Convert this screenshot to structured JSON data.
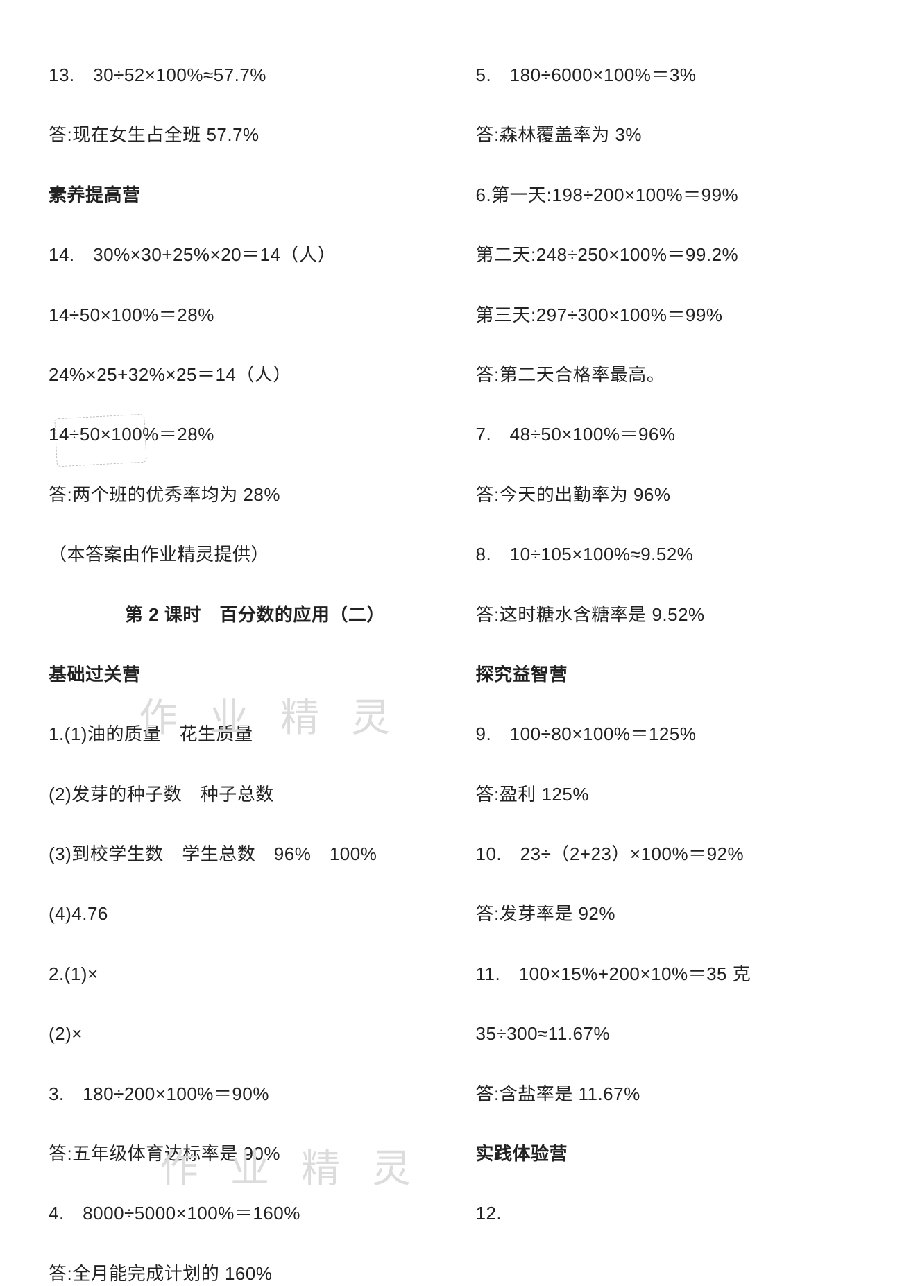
{
  "left": {
    "l1": "13.　30÷52×100%≈57.7%",
    "l2": "答:现在女生占全班 57.7%",
    "h1": "素养提高营",
    "l3": "14.　30%×30+25%×20＝14（人）",
    "l4": "14÷50×100%＝28%",
    "l5": "24%×25+32%×25＝14（人）",
    "l6": "14÷50×100%＝28%",
    "l7": "答:两个班的优秀率均为 28%",
    "l8": "（本答案由作业精灵提供）",
    "h2": "第 2 课时　百分数的应用（二）",
    "h3": "基础过关营",
    "l9": "1.(1)油的质量　花生质量",
    "l10": "(2)发芽的种子数　种子总数",
    "l11": "(3)到校学生数　学生总数　96%　100%",
    "l12": "(4)4.76",
    "l13": "2.(1)×",
    "l14": "(2)×",
    "l15": "3.　180÷200×100%＝90%",
    "l16": "答:五年级体育达标率是 90%",
    "l17": "4.　8000÷5000×100%＝160%",
    "l18": "答:全月能完成计划的 160%"
  },
  "right": {
    "r1": "5.　180÷6000×100%＝3%",
    "r2": "答:森林覆盖率为 3%",
    "r3": "6.第一天:198÷200×100%＝99%",
    "r4": "第二天:248÷250×100%＝99.2%",
    "r5": "第三天:297÷300×100%＝99%",
    "r6": "答:第二天合格率最高。",
    "r7": "7.　48÷50×100%＝96%",
    "r8": "答:今天的出勤率为 96%",
    "r9": "8.　10÷105×100%≈9.52%",
    "r10": "答:这时糖水含糖率是 9.52%",
    "h1": "探究益智营",
    "r11": "9.　100÷80×100%＝125%",
    "r12": "答:盈利 125%",
    "r13": "10.　23÷（2+23）×100%＝92%",
    "r14": "答:发芽率是 92%",
    "r15": "11.　100×15%+200×10%＝35 克",
    "r16": "35÷300≈11.67%",
    "r17": "答:含盐率是 11.67%",
    "h2": "实践体验营",
    "r18": "12."
  },
  "watermark": "作 业 精 灵"
}
